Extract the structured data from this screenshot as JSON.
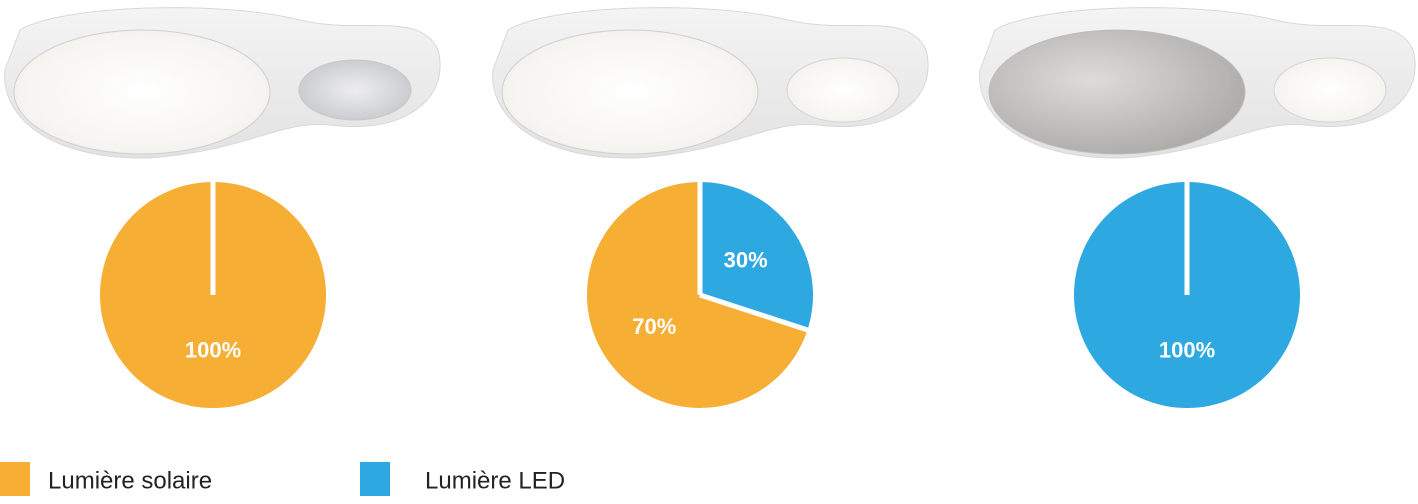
{
  "chart_data": [
    {
      "type": "pie",
      "categories": [
        "Lumière solaire"
      ],
      "values": [
        100
      ],
      "value_labels": [
        "100%"
      ],
      "colors": [
        "#f6ae34"
      ]
    },
    {
      "type": "pie",
      "categories": [
        "Lumière solaire",
        "Lumière LED"
      ],
      "values": [
        70,
        30
      ],
      "value_labels": [
        "70%",
        "30%"
      ],
      "colors": [
        "#f6ae34",
        "#2ea8e0"
      ]
    },
    {
      "type": "pie",
      "categories": [
        "Lumière LED"
      ],
      "values": [
        100
      ],
      "value_labels": [
        "100%"
      ],
      "colors": [
        "#2ea8e0"
      ]
    }
  ]
}
